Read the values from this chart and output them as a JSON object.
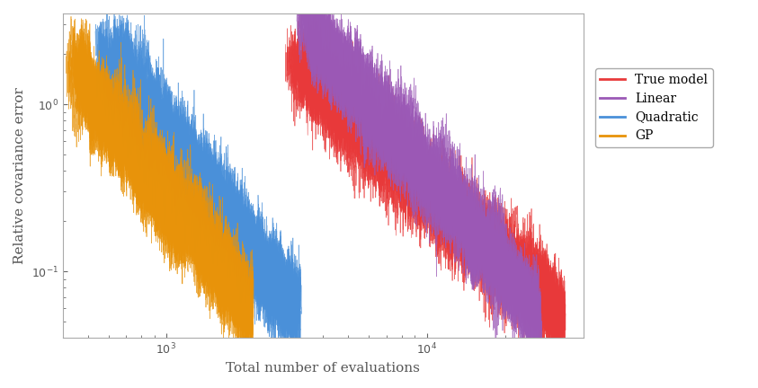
{
  "title": "",
  "xlabel": "Total number of evaluations",
  "ylabel": "Relative covariance error",
  "xlim": [
    400,
    40000
  ],
  "ylim": [
    0.04,
    3.5
  ],
  "legend_entries": [
    "True model",
    "Linear",
    "Quadratic",
    "GP"
  ],
  "colors": {
    "True model": "#e8393a",
    "Linear": "#9b59b6",
    "Quadratic": "#4a90d9",
    "GP": "#e8930a"
  },
  "series": {
    "True model": {
      "x_start": 3200,
      "x_end": 33000,
      "y_start": 1.8,
      "y_end": 0.055,
      "n_chains": 25,
      "x_spread": 0.12,
      "y_spread": 0.15
    },
    "Linear": {
      "x_start": 3500,
      "x_end": 27000,
      "y_start": 3.0,
      "y_end": 0.055,
      "n_chains": 20,
      "x_spread": 0.1,
      "y_spread": 0.15
    },
    "Quadratic": {
      "x_start": 600,
      "x_end": 3200,
      "y_start": 2.0,
      "y_end": 0.058,
      "n_chains": 25,
      "x_spread": 0.12,
      "y_spread": 0.15
    },
    "GP": {
      "x_start": 430,
      "x_end": 2100,
      "y_start": 1.7,
      "y_end": 0.06,
      "n_chains": 20,
      "x_spread": 0.1,
      "y_spread": 0.15
    }
  },
  "background_color": "#ffffff",
  "figsize": [
    8.43,
    4.32
  ],
  "dpi": 100,
  "legend_fontsize": 10,
  "axis_fontsize": 11,
  "line_width": 0.5
}
